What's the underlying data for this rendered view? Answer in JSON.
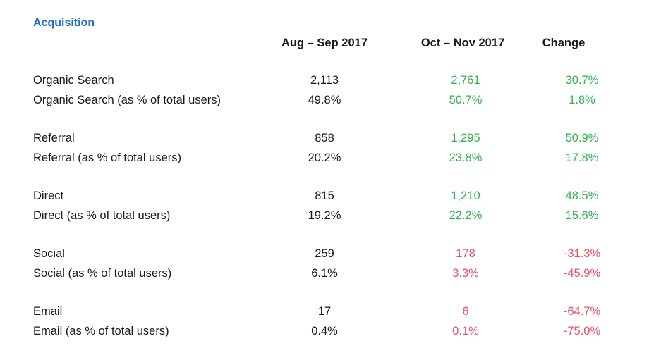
{
  "section_title": "Acquisition",
  "headers": {
    "period1": "Aug – Sep 2017",
    "period2": "Oct – Nov 2017",
    "change": "Change"
  },
  "colors": {
    "title": "#1f6fc5",
    "positive": "#2eb24e",
    "negative": "#e8525f"
  },
  "rows": [
    {
      "label": "Organic Search",
      "v1": "2,113",
      "v2": "2,761",
      "change": "30.7%",
      "trend": "positive"
    },
    {
      "label": "Organic Search (as % of total users)",
      "v1": "49.8%",
      "v2": "50.7%",
      "change": "1.8%",
      "trend": "positive"
    },
    {
      "label": "Referral",
      "v1": "858",
      "v2": "1,295",
      "change": "50.9%",
      "trend": "positive"
    },
    {
      "label": "Referral (as % of total users)",
      "v1": "20.2%",
      "v2": "23.8%",
      "change": "17.8%",
      "trend": "positive"
    },
    {
      "label": "Direct",
      "v1": "815",
      "v2": "1,210",
      "change": "48.5%",
      "trend": "positive"
    },
    {
      "label": "Direct (as % of total users)",
      "v1": "19.2%",
      "v2": "22.2%",
      "change": "15.6%",
      "trend": "positive"
    },
    {
      "label": "Social",
      "v1": "259",
      "v2": "178",
      "change": "-31.3%",
      "trend": "negative"
    },
    {
      "label": "Social (as % of total users)",
      "v1": "6.1%",
      "v2": "3.3%",
      "change": "-45.9%",
      "trend": "negative"
    },
    {
      "label": "Email",
      "v1": "17",
      "v2": "6",
      "change": "-64.7%",
      "trend": "negative"
    },
    {
      "label": "Email (as % of total users)",
      "v1": "0.4%",
      "v2": "0.1%",
      "change": "-75.0%",
      "trend": "negative"
    }
  ]
}
